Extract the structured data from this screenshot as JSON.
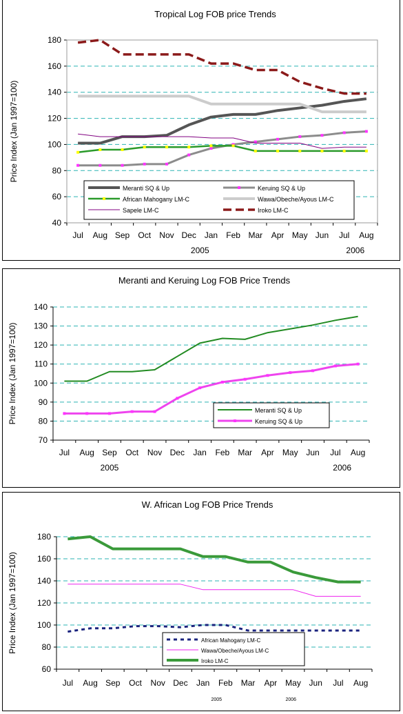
{
  "chart_data": [
    {
      "type": "line",
      "title": "Tropical Log FOB price Trends",
      "ylabel": "Price Index (Jan 1997=100)",
      "ylim": [
        40,
        180
      ],
      "yticks": [
        40,
        60,
        80,
        100,
        120,
        140,
        160,
        180
      ],
      "grid": true,
      "categories": [
        "Jul",
        "Aug",
        "Sep",
        "Oct",
        "Nov",
        "Dec",
        "Jan",
        "Feb",
        "Mar",
        "Apr",
        "May",
        "Jun",
        "Jul",
        "Aug"
      ],
      "year_labels": [
        {
          "label": "2005",
          "at": 5.5
        },
        {
          "label": "2006",
          "at": 12.5
        }
      ],
      "legend_position": "bottom-inside",
      "series": [
        {
          "name": "Meranti SQ & Up",
          "color": "#555555",
          "values": [
            101,
            101,
            106,
            106,
            107,
            115,
            121,
            123,
            123,
            126,
            128,
            130,
            133,
            135
          ]
        },
        {
          "name": "Keruing SQ & Up",
          "color": "#8c8c8c",
          "values": [
            84,
            84,
            84,
            85,
            85,
            92,
            97,
            100,
            102,
            104,
            106,
            107,
            109,
            110
          ]
        },
        {
          "name": "African Mahogany LM-C",
          "color": "#2a9a2a",
          "values": [
            94,
            96,
            96,
            98,
            98,
            98,
            99,
            99,
            95,
            95,
            95,
            95,
            95,
            95
          ]
        },
        {
          "name": "Wawa/Obeche/Ayous LM-C",
          "color": "#cccccc",
          "values": [
            137,
            137,
            137,
            137,
            137,
            137,
            131,
            131,
            131,
            131,
            131,
            125,
            125,
            125
          ]
        },
        {
          "name": "Sapele LM-C",
          "color": "#800080",
          "values": [
            108,
            106,
            106,
            106,
            106,
            106,
            105,
            105,
            101,
            101,
            101,
            97,
            98,
            98
          ]
        },
        {
          "name": "Iroko LM-C",
          "color": "#8b1a1a",
          "values": [
            178,
            180,
            169,
            169,
            169,
            169,
            162,
            162,
            157,
            157,
            148,
            143,
            139,
            139
          ]
        }
      ]
    },
    {
      "type": "line",
      "title": "Meranti and Keruing Log FOB Price Trends",
      "ylabel": "Price Index (Jan 1997=100)",
      "ylim": [
        70,
        140
      ],
      "yticks": [
        70,
        80,
        90,
        100,
        110,
        120,
        130,
        140
      ],
      "grid": true,
      "categories": [
        "Jul",
        "Aug",
        "Sep",
        "Oct",
        "Nov",
        "Dec",
        "Jan",
        "Feb",
        "Mar",
        "Apr",
        "May",
        "Jun",
        "Jul",
        "Aug"
      ],
      "year_labels": [
        {
          "label": "2005",
          "at": 2
        },
        {
          "label": "2006",
          "at": 12.3
        }
      ],
      "legend_position": "bottom-right",
      "series": [
        {
          "name": "Meranti SQ & Up",
          "color": "#228b22",
          "values": [
            101,
            101,
            106,
            106,
            107,
            114,
            121,
            123.5,
            123,
            126.5,
            128.5,
            130.5,
            133,
            135
          ]
        },
        {
          "name": "Keruing SQ & Up",
          "color": "#ee44ee",
          "values": [
            84,
            84,
            84,
            85,
            85,
            92,
            97.5,
            100.5,
            102,
            104,
            105.5,
            106.5,
            109,
            110
          ]
        }
      ]
    },
    {
      "type": "line",
      "title": "W. African Log FOB Price Trends",
      "ylabel": "Price Index (Jan 1997=100)",
      "ylim": [
        60,
        180
      ],
      "yticks": [
        60,
        80,
        100,
        120,
        140,
        160,
        180
      ],
      "grid": true,
      "categories": [
        "Jul",
        "Aug",
        "Sep",
        "Oct",
        "Nov",
        "Dec",
        "Jan",
        "Feb",
        "Mar",
        "Apr",
        "May",
        "Jun",
        "Jul",
        "Aug"
      ],
      "year_labels": [
        {
          "label": "2005",
          "at": 6.6
        },
        {
          "label": "2006",
          "at": 9.9
        }
      ],
      "legend_position": "bottom-center",
      "series": [
        {
          "name": "African Mahogany LM-C",
          "color": "#1a237e",
          "values": [
            94,
            97,
            97,
            99,
            99,
            98,
            100,
            100,
            95,
            95,
            95,
            95,
            95,
            95
          ]
        },
        {
          "name": "Wawa/Obeche/Ayous LM-C",
          "color": "#ee22ee",
          "values": [
            137,
            137,
            137,
            137,
            137,
            137,
            132,
            132,
            132,
            132,
            132,
            126,
            126,
            126
          ]
        },
        {
          "name": "Iroko LM-C",
          "color": "#3a9a3a",
          "values": [
            178,
            180,
            169,
            169,
            169,
            169,
            162,
            162,
            157,
            157,
            148,
            143,
            139,
            139
          ]
        }
      ]
    }
  ]
}
